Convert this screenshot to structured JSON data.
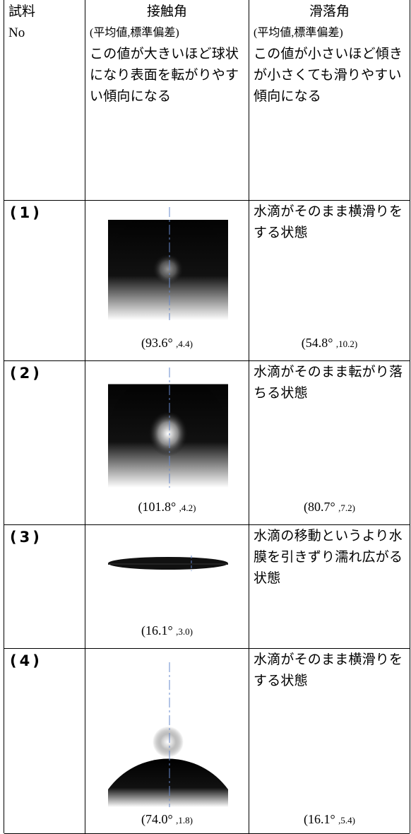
{
  "table": {
    "header": {
      "col1": [
        "試料",
        "No"
      ],
      "col2": {
        "title": "接触角",
        "note": "(平均値,標準偏差)",
        "desc": "この値が大きいほど球状になり表面を転がりやすい傾向になる"
      },
      "col3": {
        "title": "滑落角",
        "note": "(平均値,標準偏差)",
        "desc": "この値が小さいほど傾きが小さくても滑りやすい傾向になる"
      }
    },
    "rows": [
      {
        "no": "(1)",
        "contact": "(93.6°",
        "contact_sd": ",4.4)",
        "desc": "水滴がそのまま横滑りをする状態",
        "slide": "(54.8°",
        "slide_sd": ",10.2)"
      },
      {
        "no": "(2)",
        "contact": "(101.8°",
        "contact_sd": ",4.2)",
        "desc": "水滴がそのまま転がり落ちる状態",
        "slide": "(80.7°",
        "slide_sd": ",7.2)"
      },
      {
        "no": "(3)",
        "contact": "(16.1°",
        "contact_sd": ",3.0)",
        "desc": "水滴の移動というより水膜を引きずり濡れ広がる状態"
      },
      {
        "no": "(4)",
        "contact": "(74.0°",
        "contact_sd": ",1.8)",
        "desc": "水滴がそのまま横滑りをする状態",
        "slide": "(16.1°",
        "slide_sd": ",5.4)"
      }
    ]
  }
}
